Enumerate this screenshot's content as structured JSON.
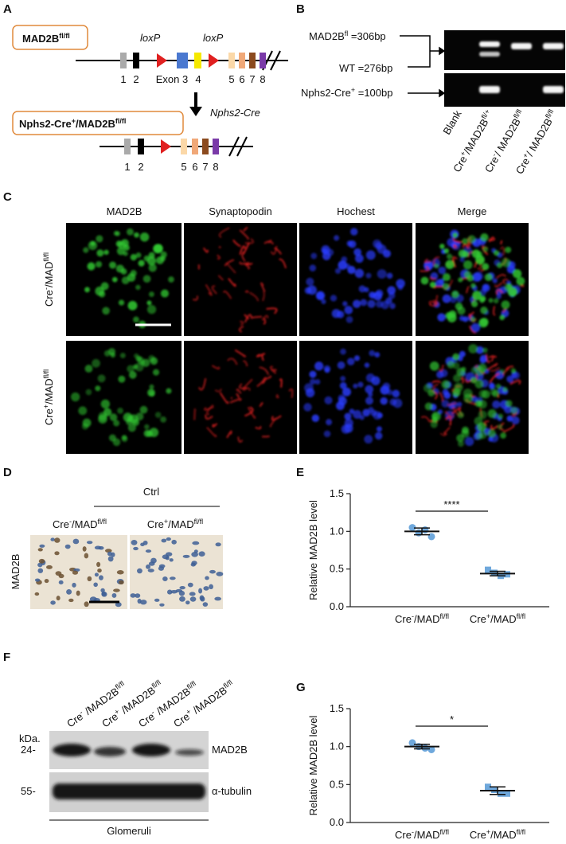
{
  "panel_A": {
    "label": "A",
    "genotype_top": [
      "MAD2B",
      "fl/fl"
    ],
    "loxp": [
      "loxP",
      "loxP"
    ],
    "exons_top": [
      "1",
      "2",
      "Exon 3",
      "4",
      "5",
      "6",
      "7",
      "8"
    ],
    "cre": "Nphs2-Cre",
    "genotype_bottom": [
      "Nphs2-Cre",
      "+",
      "/MAD2B",
      "fl/fl"
    ],
    "exons_bottom": [
      "1",
      "2",
      "5",
      "6",
      "7",
      "8"
    ]
  },
  "panel_B": {
    "label": "B",
    "bands": [
      [
        "MAD2B",
        "fl",
        " =306bp"
      ],
      [
        "WT =276bp"
      ],
      [
        "Nphs2-Cre",
        "+",
        " =100bp"
      ]
    ],
    "lanes": [
      [
        "Blank"
      ],
      [
        "Cre",
        "+",
        "/MAD2B",
        "fl/+"
      ],
      [
        "Cre",
        "-",
        "/ MAD2B",
        "fl/fl"
      ],
      [
        "Cre",
        "+",
        "/ MAD2B",
        "fl/fl"
      ]
    ]
  },
  "panel_C": {
    "label": "C",
    "columns": [
      "MAD2B",
      "Synaptopodin",
      "Hochest",
      "Merge"
    ],
    "rows": [
      [
        "Cre",
        "-",
        "/MAD",
        "fl/fl"
      ],
      [
        "Cre",
        "+",
        "/MAD",
        "fl/fl"
      ]
    ]
  },
  "panel_D": {
    "label": "D",
    "group": "Ctrl",
    "columns": [
      [
        "Cre",
        "-",
        "/MAD",
        "fl/fl"
      ],
      [
        "Cre",
        "+",
        "/MAD",
        "fl/fl"
      ]
    ],
    "stain": "MAD2B"
  },
  "panel_F": {
    "label": "F",
    "lanes": [
      [
        "Cre",
        "-",
        " /MAD2B",
        "fl/fl"
      ],
      [
        "Cre",
        "+",
        " /MAD2B",
        "fl/fl"
      ],
      [
        "Cre",
        "-",
        " /MAD2B",
        "fl/fl"
      ],
      [
        "Cre",
        "+",
        " /MAD2B",
        "fl/fl"
      ]
    ],
    "unit": "kDa.",
    "markers": [
      "24-",
      "55-"
    ],
    "proteins": [
      "MAD2B",
      "α-tubulin"
    ],
    "sample": "Glomeruli"
  },
  "chart_data": [
    {
      "type": "scatter",
      "label": "E",
      "ylabel": "Relative MAD2B level",
      "categories": [
        [
          "Cre",
          "-",
          "/MAD",
          "fl/fl"
        ],
        [
          "Cre",
          "+",
          "/MAD",
          "fl/fl"
        ]
      ],
      "groups": [
        {
          "values": [
            1.05,
            0.98,
            1.02,
            0.93
          ],
          "mean": 1.0,
          "sem": 0.045,
          "color": "#6fa8dc",
          "marker": "circle"
        },
        {
          "values": [
            0.49,
            0.45,
            0.41,
            0.43
          ],
          "mean": 0.44,
          "sem": 0.03,
          "color": "#6fa8dc",
          "marker": "square"
        }
      ],
      "ylim": [
        0,
        1.5
      ],
      "yticks": [
        {
          "value": 0,
          "label": "0.0"
        },
        {
          "value": 0.5,
          "label": "0.5"
        },
        {
          "value": 1,
          "label": "1.0"
        },
        {
          "value": 1.5,
          "label": "1.5"
        }
      ],
      "significance": "****"
    },
    {
      "type": "scatter",
      "label": "G",
      "ylabel": "Relative MAD2B level",
      "categories": [
        [
          "Cre",
          "-",
          "/MAD",
          "fl/fl"
        ],
        [
          "Cre",
          "+",
          "/MAD",
          "fl/fl"
        ]
      ],
      "groups": [
        {
          "values": [
            1.05,
            1.0,
            0.98,
            0.96
          ],
          "mean": 1.0,
          "sem": 0.03,
          "color": "#6fa8dc",
          "marker": "circle"
        },
        {
          "values": [
            0.47,
            0.43,
            0.38,
            0.38
          ],
          "mean": 0.42,
          "sem": 0.05,
          "color": "#6fa8dc",
          "marker": "square"
        }
      ],
      "ylim": [
        0,
        1.5
      ],
      "yticks": [
        {
          "value": 0,
          "label": "0.0"
        },
        {
          "value": 0.5,
          "label": "0.5"
        },
        {
          "value": 1,
          "label": "1.0"
        },
        {
          "value": 1.5,
          "label": "1.5"
        }
      ],
      "significance": "*"
    }
  ]
}
